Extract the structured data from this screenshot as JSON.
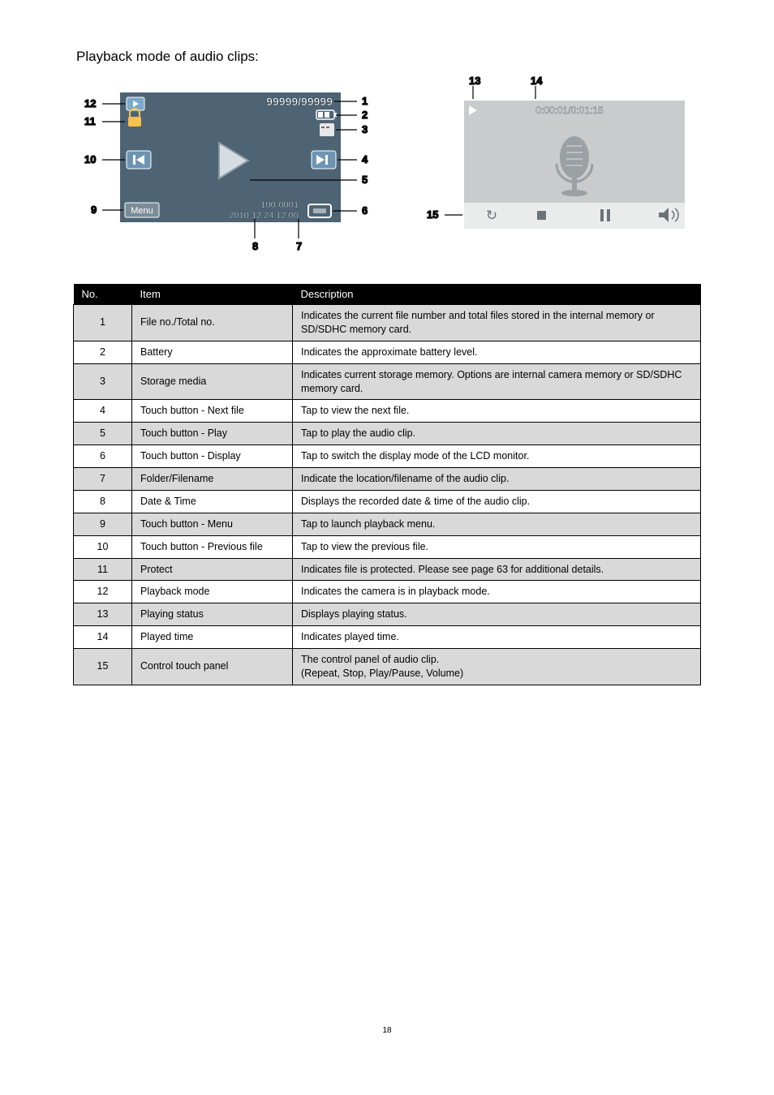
{
  "page": {
    "title": "Playback mode of audio clips:",
    "pageNumber": "18"
  },
  "diagramLeft": {
    "bgColor": "#4e6475",
    "controlBg": "#7b8c99",
    "playIcon": "▶",
    "prevIcon": "◀",
    "nextIcon": "▶|",
    "lockIcon": "🔒",
    "counter": "99999/99999",
    "battery": "▥",
    "storage": "SD",
    "menuLabel": "Menu",
    "folderFile": "100-0001",
    "dateTime": "2010.12.24  12:00",
    "callouts": {
      "c1": "1",
      "c2": "2",
      "c3": "3",
      "c4": "4",
      "c5": "5",
      "c6": "6",
      "c7": "7",
      "c8": "8",
      "c9": "9",
      "c10": "10",
      "c11": "11",
      "c12": "12"
    }
  },
  "diagramRight": {
    "bgColor": "#c9cbcc",
    "timeText": "0:00:01/0:01:15",
    "micColor": "#9aa0a4",
    "ctrlBg": "#eaecec",
    "repeatIcon": "↻",
    "stopIcon": "■",
    "pauseIcon": "❚❚",
    "volIcon": "◀))",
    "callouts": {
      "c13": "13",
      "c14": "14",
      "c15": "15"
    }
  },
  "tableHeaders": {
    "no": "No.",
    "item": "Item",
    "desc": "Description"
  },
  "rows": [
    {
      "no": "1",
      "item": "File no./Total no.",
      "desc": "Indicates the current file number and total files stored in the internal memory or SD/SDHC memory card.",
      "shaded": true
    },
    {
      "no": "2",
      "item": "Battery",
      "desc": "Indicates the approximate battery level.",
      "shaded": false
    },
    {
      "no": "3",
      "item": "Storage media",
      "desc": "Indicates current storage memory.  Options are internal camera memory or SD/SDHC memory card.",
      "shaded": true
    },
    {
      "no": "4",
      "item": "Touch button - Next file",
      "desc": "Tap to view the next file.",
      "shaded": false
    },
    {
      "no": "5",
      "item": "Touch button - Play",
      "desc": "Tap to play the audio clip.",
      "shaded": true
    },
    {
      "no": "6",
      "item": "Touch button - Display",
      "desc": "Tap to switch the display mode of the LCD monitor.",
      "shaded": false
    },
    {
      "no": "7",
      "item": "Folder/Filename",
      "desc": "Indicate the location/filename of the audio clip.",
      "shaded": true
    },
    {
      "no": "8",
      "item": "Date & Time",
      "desc": "Displays the recorded date & time of the audio clip.",
      "shaded": false
    },
    {
      "no": "9",
      "item": "Touch button - Menu",
      "desc": "Tap to launch playback menu.",
      "shaded": true
    },
    {
      "no": "10",
      "item": "Touch button - Previous file",
      "desc": "Tap to view the previous file.",
      "shaded": false
    },
    {
      "no": "11",
      "item": "Protect",
      "desc": "Indicates file is protected.  Please see page 63 for additional details.",
      "shaded": true
    },
    {
      "no": "12",
      "item": "Playback mode",
      "desc": "Indicates the camera is in playback mode.",
      "shaded": false
    },
    {
      "no": "13",
      "item": "Playing status",
      "desc": "Displays playing status.",
      "shaded": true
    },
    {
      "no": "14",
      "item": "Played time",
      "desc": "Indicates played time.",
      "shaded": false
    },
    {
      "no": "15",
      "item": "Control touch panel",
      "desc": "The control panel of audio clip.\n(Repeat, Stop, Play/Pause, Volume)",
      "shaded": true
    }
  ]
}
